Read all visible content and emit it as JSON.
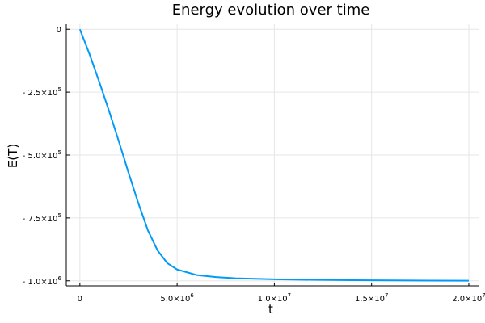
{
  "chart_data": {
    "type": "line",
    "title": "Energy evolution over time",
    "xlabel": "t",
    "ylabel": "E(T)",
    "xlim": [
      -700000,
      20500000
    ],
    "ylim": [
      -1020000,
      20000
    ],
    "grid": true,
    "legend": "none",
    "x_ticks": [
      {
        "value": 0,
        "base": "0",
        "exp": ""
      },
      {
        "value": 5000000,
        "base": "5.0×10",
        "exp": "6"
      },
      {
        "value": 10000000,
        "base": "1.0×10",
        "exp": "7"
      },
      {
        "value": 15000000,
        "base": "1.5×10",
        "exp": "7"
      },
      {
        "value": 20000000,
        "base": "2.0×10",
        "exp": "7"
      }
    ],
    "y_ticks": [
      {
        "value": 0,
        "base": "0",
        "exp": ""
      },
      {
        "value": -250000,
        "base": "- 2.5×10",
        "exp": "5"
      },
      {
        "value": -500000,
        "base": "- 5.0×10",
        "exp": "5"
      },
      {
        "value": -750000,
        "base": "- 7.5×10",
        "exp": "5"
      },
      {
        "value": -1000000,
        "base": "- 1.0×10",
        "exp": "6"
      }
    ],
    "series": [
      {
        "color": "#009af9",
        "x": [
          0,
          500000,
          1000000,
          1500000,
          2000000,
          2500000,
          3000000,
          3500000,
          4000000,
          4500000,
          5000000,
          6000000,
          7000000,
          8000000,
          9000000,
          10000000,
          12000000,
          14000000,
          16000000,
          18000000,
          20000000
        ],
        "y": [
          0,
          -100000,
          -210000,
          -325000,
          -445000,
          -570000,
          -690000,
          -800000,
          -880000,
          -930000,
          -955000,
          -977000,
          -985000,
          -990000,
          -992000,
          -994000,
          -996000,
          -997500,
          -998500,
          -999000,
          -999500
        ]
      }
    ]
  }
}
